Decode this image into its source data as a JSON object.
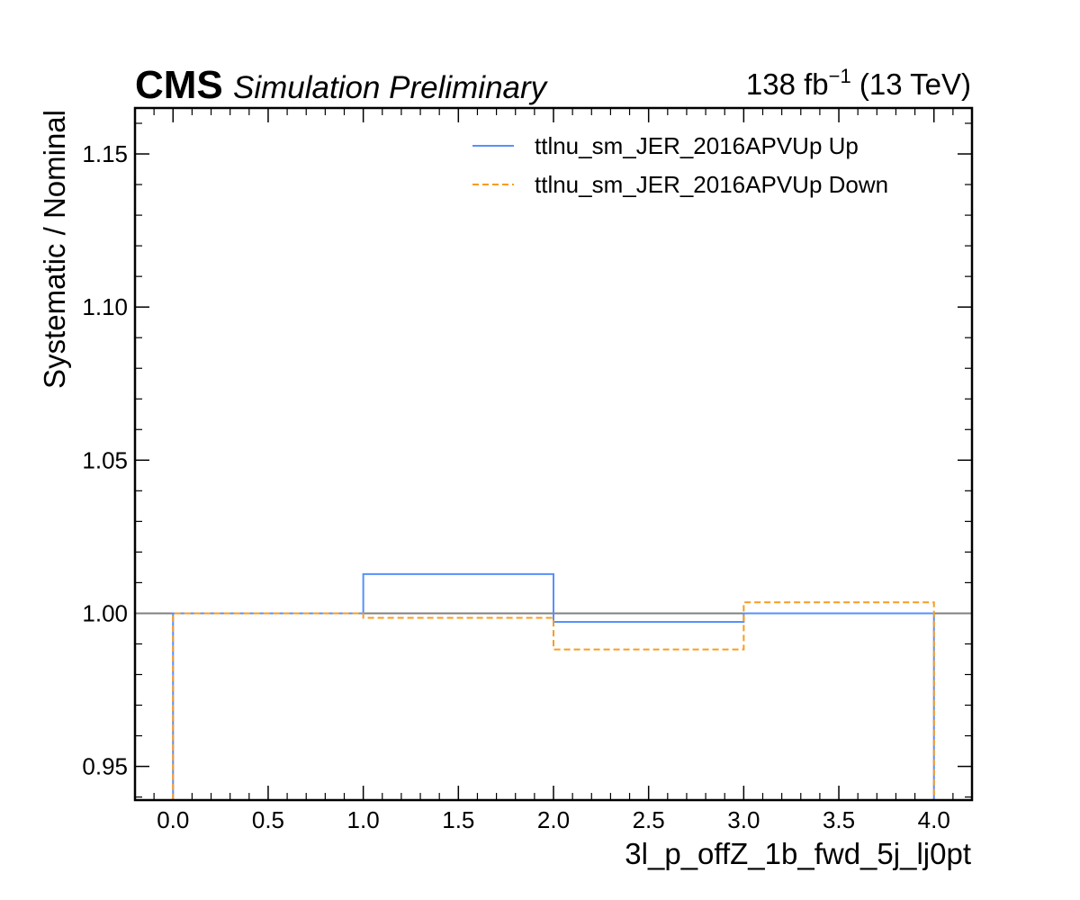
{
  "header": {
    "experiment": "CMS",
    "subtitle": "Simulation Preliminary",
    "lumi_value": "138 fb",
    "lumi_exp": "−1",
    "lumi_energy": " (13 TeV)"
  },
  "colors": {
    "up": "#5790fc",
    "down": "#f89c20",
    "reference": "#808080",
    "axis": "#000000"
  },
  "chart_data": {
    "type": "line",
    "drawstyle": "steps",
    "xlabel": "3l_p_offZ_1b_fwd_5j_lj0pt",
    "ylabel": "Systematic / Nominal",
    "xlim": [
      -0.2,
      4.2
    ],
    "ylim": [
      0.939,
      1.165
    ],
    "x_ticks": [
      0.0,
      0.5,
      1.0,
      1.5,
      2.0,
      2.5,
      3.0,
      3.5,
      4.0
    ],
    "x_tick_labels": [
      "0.0",
      "0.5",
      "1.0",
      "1.5",
      "2.0",
      "2.5",
      "3.0",
      "3.5",
      "4.0"
    ],
    "y_ticks": [
      0.95,
      1.0,
      1.05,
      1.1,
      1.15
    ],
    "y_tick_labels": [
      "0.95",
      "1.00",
      "1.05",
      "1.10",
      "1.15"
    ],
    "reference_line": 1.0,
    "bin_edges": [
      0,
      1,
      2,
      3,
      4
    ],
    "series": [
      {
        "name": "ttlnu_sm_JER_2016APVUp Up",
        "style": "solid",
        "values": [
          1.0,
          1.0128,
          0.9972,
          1.0
        ]
      },
      {
        "name": "ttlnu_sm_JER_2016APVUp Down",
        "style": "dashed",
        "values": [
          1.0,
          0.9985,
          0.9882,
          1.0036
        ]
      }
    ],
    "legend_position": "top-right",
    "grid": false
  }
}
